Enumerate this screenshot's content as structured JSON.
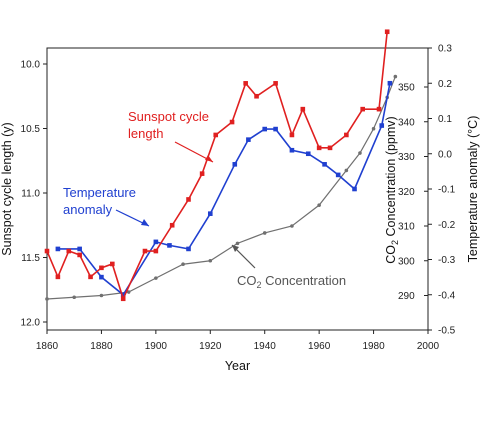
{
  "chart_data": {
    "type": "line",
    "title": "",
    "xlabel": "Year",
    "xlim": [
      1860,
      2000
    ],
    "x_ticks": [
      1860,
      1880,
      1900,
      1920,
      1940,
      1960,
      1980,
      2000
    ],
    "left_axis": {
      "label": "Sunspot cycle length (y)",
      "range": [
        9.5,
        12.0
      ],
      "reversed": true,
      "ticks": [
        "10.0",
        "10.5",
        "11.0",
        "11.5",
        "12.0"
      ]
    },
    "right_axis_co2": {
      "label": "CO2 Concentration (ppmv)",
      "range": [
        280,
        360
      ],
      "ticks": [
        "290",
        "300",
        "310",
        "320",
        "330",
        "340",
        "350"
      ]
    },
    "right_axis_temp": {
      "label": "Temperature anomaly (°C)",
      "range": [
        -0.5,
        0.3
      ],
      "ticks": [
        "-0.5",
        "-0.4",
        "-0.3",
        "-0.2",
        "-0.1",
        "0.0",
        "0.1",
        "0.2",
        "0.3"
      ]
    },
    "series": [
      {
        "name": "Sunspot cycle length",
        "axis": "left",
        "color": "#e02020",
        "label_lines": [
          "Sunspot cycle",
          "length"
        ],
        "x": [
          1860,
          1864,
          1868,
          1872,
          1876,
          1880,
          1884,
          1888,
          1896,
          1900,
          1906,
          1912,
          1917,
          1922,
          1928,
          1933,
          1937,
          1944,
          1950,
          1954,
          1960,
          1964,
          1970,
          1976,
          1982,
          1985
        ],
        "values": [
          11.45,
          11.65,
          11.45,
          11.48,
          11.65,
          11.58,
          11.55,
          11.82,
          11.45,
          11.45,
          11.25,
          11.05,
          10.85,
          10.55,
          10.45,
          10.15,
          10.25,
          10.15,
          10.55,
          10.35,
          10.65,
          10.65,
          10.55,
          10.35,
          10.35,
          9.75
        ]
      },
      {
        "name": "Temperature anomaly",
        "axis": "temp",
        "color": "#2040d0",
        "label_lines": [
          "Temperature",
          "anomaly"
        ],
        "x": [
          1864,
          1872,
          1880,
          1888,
          1900,
          1905,
          1912,
          1920,
          1929,
          1934,
          1940,
          1944,
          1950,
          1956,
          1962,
          1967,
          1973,
          1983,
          1986
        ],
        "values": [
          -0.27,
          -0.27,
          -0.35,
          -0.4,
          -0.25,
          -0.26,
          -0.27,
          -0.17,
          -0.03,
          0.04,
          0.07,
          0.07,
          0.01,
          0.0,
          -0.03,
          -0.06,
          -0.1,
          0.08,
          0.2
        ]
      },
      {
        "name": "CO2 Concentration",
        "axis": "co2",
        "color": "#707070",
        "label_prefix": "CO",
        "label_sub": "2",
        "label_suffix": " Concentration",
        "x": [
          1860,
          1870,
          1880,
          1890,
          1900,
          1910,
          1920,
          1930,
          1940,
          1950,
          1960,
          1970,
          1975,
          1980,
          1985,
          1988
        ],
        "values": [
          289,
          289.5,
          290,
          291,
          295,
          299,
          300,
          305,
          308,
          310,
          316,
          326,
          331,
          338,
          347,
          353
        ]
      }
    ]
  }
}
